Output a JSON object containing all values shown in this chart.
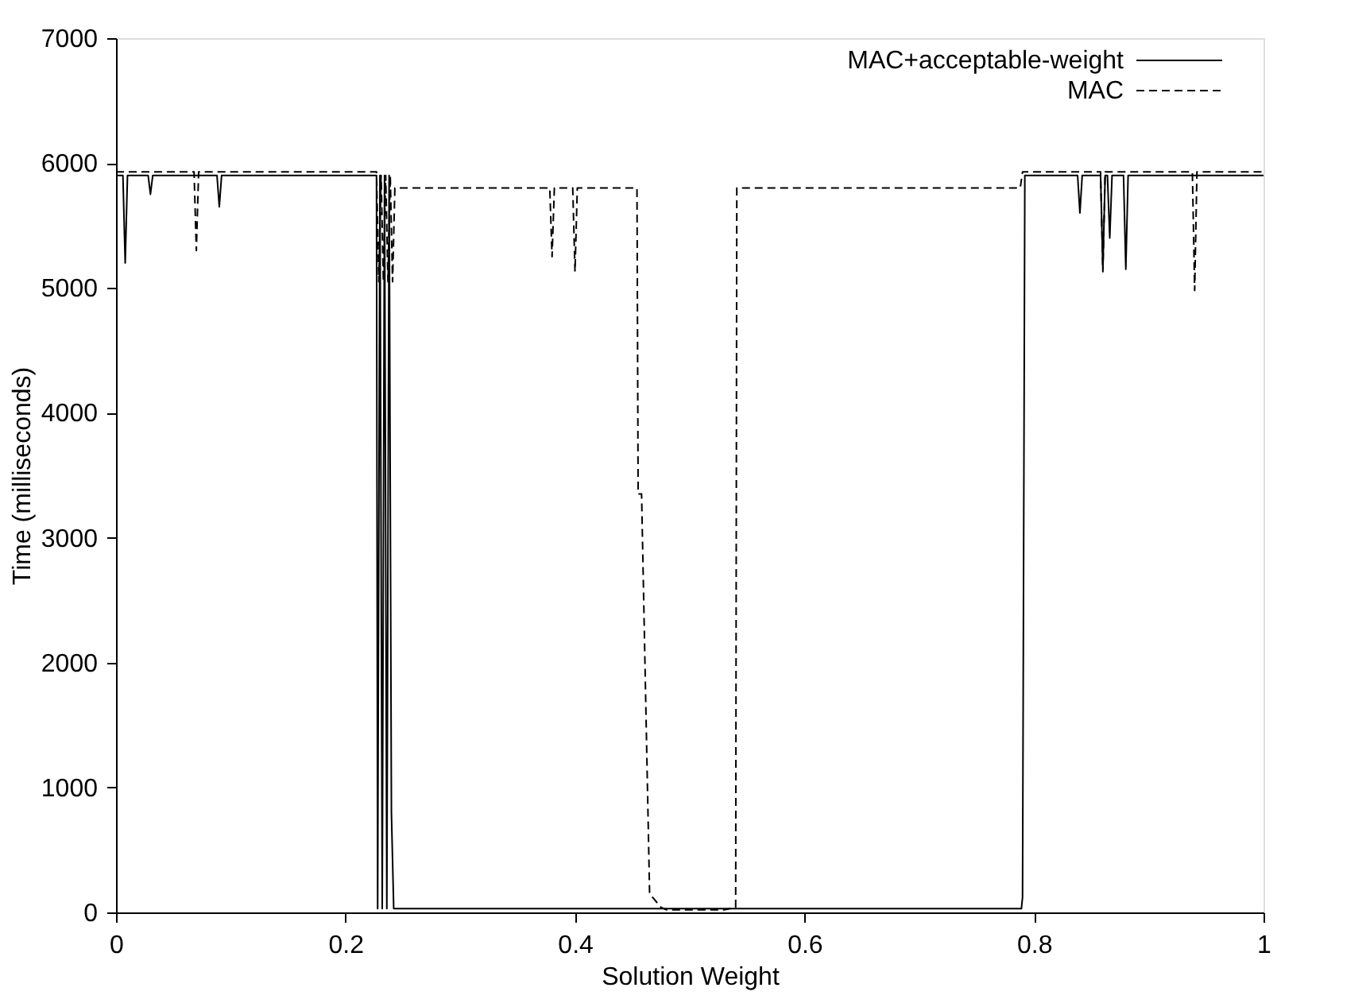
{
  "chart_data": {
    "type": "line",
    "xlabel": "Solution Weight",
    "ylabel": "Time (milliseconds)",
    "xlim": [
      0,
      1
    ],
    "xticks": [
      0,
      0.2,
      0.4,
      0.6,
      0.8,
      1
    ],
    "ylim": [
      0,
      7000
    ],
    "yticks": [
      0,
      1000,
      2000,
      3000,
      4000,
      5000,
      6000,
      7000
    ],
    "grid": false,
    "legend": "top right",
    "marker": "none",
    "series": [
      {
        "name": "MAC+acceptable-weight",
        "color": "#000000",
        "line_style": "solid",
        "x": [
          0,
          0.006,
          0.008,
          0.01,
          0.028,
          0.03,
          0.032,
          0.088,
          0.09,
          0.092,
          0.227,
          0.228,
          0.23,
          0.232,
          0.234,
          0.236,
          0.238,
          0.24,
          0.242,
          0.789,
          0.79,
          0.792,
          0.838,
          0.84,
          0.842,
          0.858,
          0.86,
          0.862,
          0.864,
          0.866,
          0.868,
          0.878,
          0.88,
          0.882,
          1
        ],
        "values": [
          5900,
          5900,
          5200,
          5900,
          5900,
          5750,
          5900,
          5900,
          5650,
          5900,
          5900,
          30,
          5900,
          30,
          5900,
          30,
          5900,
          800,
          30,
          30,
          120,
          5900,
          5900,
          5600,
          5900,
          5900,
          5150,
          5900,
          5900,
          5400,
          5900,
          5900,
          5150,
          5900,
          5900
        ]
      },
      {
        "name": "MAC",
        "color": "#000000",
        "line_style": "dashed",
        "x": [
          0,
          0.068,
          0.07,
          0.072,
          0.227,
          0.229,
          0.231,
          0.233,
          0.235,
          0.237,
          0.239,
          0.241,
          0.243,
          0.378,
          0.38,
          0.382,
          0.398,
          0.4,
          0.402,
          0.454,
          0.455,
          0.458,
          0.465,
          0.475,
          0.48,
          0.53,
          0.54,
          0.541,
          0.788,
          0.79,
          0.858,
          0.86,
          0.862,
          0.938,
          0.94,
          0.942,
          1
        ],
        "values": [
          5930,
          5930,
          5300,
          5930,
          5930,
          5050,
          5900,
          5050,
          5900,
          5050,
          5900,
          5050,
          5800,
          5800,
          5250,
          5800,
          5800,
          5130,
          5800,
          5800,
          3350,
          3350,
          150,
          40,
          20,
          20,
          40,
          5800,
          5800,
          5930,
          5930,
          5130,
          5930,
          5930,
          4980,
          5930,
          5930
        ]
      }
    ]
  }
}
